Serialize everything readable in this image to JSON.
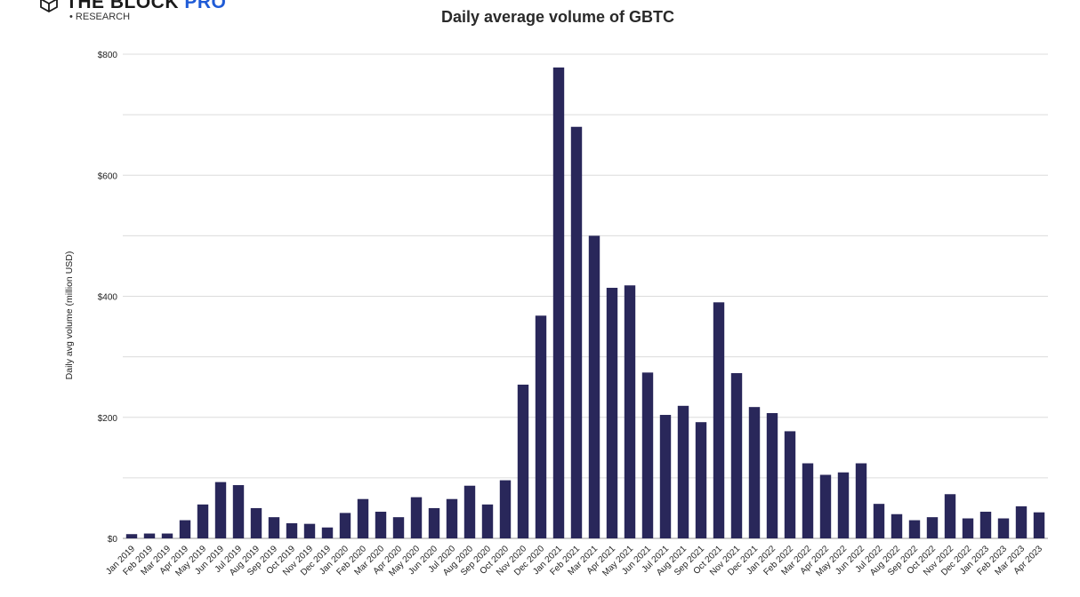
{
  "brand": {
    "name": "THE BLOCK",
    "name_accent": "PRO",
    "sub": "• RESEARCH"
  },
  "colors": {
    "bar": "#29275a",
    "grid": "#dcdcdc",
    "axis": "#9a9a9a",
    "brand_accent": "#1f5bd6"
  },
  "chart_data": {
    "type": "bar",
    "title": "Daily average volume of GBTC",
    "ylabel": "Daily avg volume (million USD)",
    "xlabel": "",
    "ylim": [
      0,
      800
    ],
    "y_ticks": [
      0,
      200,
      400,
      600,
      800
    ],
    "y_tick_labels": [
      "$0",
      "$200",
      "$400",
      "$600",
      "$800"
    ],
    "grid": true,
    "categories": [
      "Jan 2019",
      "Feb 2019",
      "Mar 2019",
      "Apr 2019",
      "May 2019",
      "Jun 2019",
      "Jul 2019",
      "Aug 2019",
      "Sep 2019",
      "Oct 2019",
      "Nov 2019",
      "Dec 2019",
      "Jan 2020",
      "Feb 2020",
      "Mar 2020",
      "Apr 2020",
      "May 2020",
      "Jun 2020",
      "Jul 2020",
      "Aug 2020",
      "Sep 2020",
      "Oct 2020",
      "Nov 2020",
      "Dec 2020",
      "Jan 2021",
      "Feb 2021",
      "Mar 2021",
      "Apr 2021",
      "May 2021",
      "Jun 2021",
      "Jul 2021",
      "Aug 2021",
      "Sep 2021",
      "Oct 2021",
      "Nov 2021",
      "Dec 2021",
      "Jan 2022",
      "Feb 2022",
      "Mar 2022",
      "Apr 2022",
      "May 2022",
      "Jun 2022",
      "Jul 2022",
      "Aug 2022",
      "Sep 2022",
      "Oct 2022",
      "Nov 2022",
      "Dec 2022",
      "Jan 2023",
      "Feb 2023",
      "Mar 2023",
      "Apr 2023"
    ],
    "values": [
      7,
      8,
      8,
      30,
      56,
      93,
      88,
      50,
      35,
      25,
      24,
      18,
      42,
      65,
      44,
      35,
      68,
      50,
      65,
      87,
      56,
      96,
      254,
      368,
      778,
      680,
      500,
      414,
      418,
      274,
      204,
      219,
      192,
      390,
      273,
      217,
      207,
      177,
      124,
      105,
      109,
      124,
      57,
      40,
      30,
      35,
      73,
      33,
      44,
      33,
      53,
      43
    ]
  }
}
